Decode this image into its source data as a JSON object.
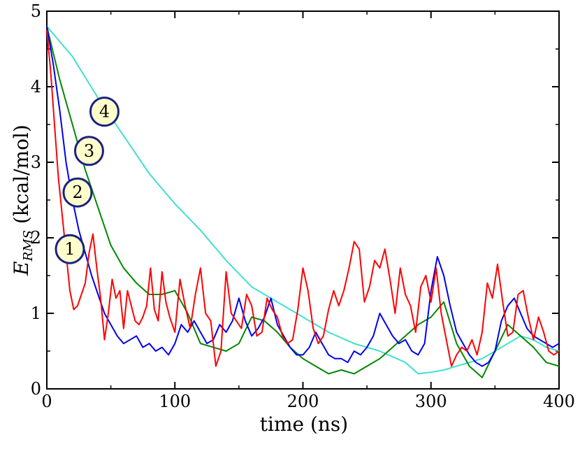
{
  "chart_data": {
    "type": "line",
    "title": "",
    "xlabel": "time (ns)",
    "ylabel_main": "E",
    "ylabel_sub": "RMS",
    "ylabel_units": " (kcal/mol)",
    "xlim": [
      0,
      400
    ],
    "ylim": [
      0,
      5
    ],
    "xticks": [
      0,
      100,
      200,
      300,
      400
    ],
    "yticks": [
      0,
      1,
      2,
      3,
      4,
      5
    ],
    "grid": false,
    "series": [
      {
        "name": "1",
        "color": "#ff0000",
        "x": [
          0,
          3,
          6,
          9,
          12,
          15,
          18,
          21,
          24,
          27,
          30,
          33,
          36,
          39,
          42,
          45,
          48,
          51,
          54,
          57,
          60,
          63,
          66,
          69,
          72,
          75,
          78,
          81,
          84,
          87,
          90,
          93,
          96,
          100,
          104,
          108,
          112,
          116,
          120,
          124,
          128,
          132,
          136,
          140,
          144,
          148,
          152,
          156,
          160,
          164,
          168,
          172,
          176,
          180,
          184,
          188,
          192,
          196,
          200,
          204,
          208,
          212,
          216,
          220,
          224,
          228,
          232,
          236,
          240,
          244,
          248,
          252,
          256,
          260,
          264,
          268,
          272,
          276,
          280,
          284,
          288,
          292,
          296,
          300,
          304,
          308,
          312,
          316,
          320,
          324,
          328,
          332,
          336,
          340,
          344,
          348,
          352,
          356,
          360,
          364,
          368,
          372,
          376,
          380,
          384,
          388,
          392,
          396,
          400
        ],
        "y": [
          4.75,
          4.2,
          3.5,
          2.8,
          2.3,
          1.8,
          1.3,
          1.05,
          1.1,
          1.25,
          1.4,
          1.8,
          2.05,
          1.6,
          1.2,
          0.65,
          1.0,
          1.45,
          1.2,
          1.3,
          0.8,
          1.3,
          1.1,
          0.9,
          0.85,
          0.95,
          1.1,
          1.6,
          1.05,
          0.9,
          1.55,
          1.15,
          0.95,
          0.75,
          1.45,
          1.1,
          0.8,
          1.25,
          1.6,
          1.0,
          0.9,
          0.3,
          0.5,
          1.55,
          1.0,
          0.9,
          0.8,
          1.25,
          1.1,
          0.7,
          0.75,
          1.2,
          1.05,
          0.95,
          0.7,
          0.6,
          0.65,
          1.05,
          1.6,
          1.3,
          0.8,
          0.6,
          0.7,
          1.05,
          1.3,
          1.1,
          1.3,
          1.6,
          1.95,
          1.85,
          1.15,
          1.35,
          1.7,
          1.6,
          1.85,
          1.45,
          1.0,
          1.6,
          1.25,
          1.1,
          0.75,
          1.35,
          1.5,
          1.15,
          1.6,
          1.0,
          0.65,
          0.3,
          0.45,
          0.55,
          0.5,
          0.65,
          0.45,
          0.75,
          1.4,
          1.2,
          1.65,
          1.15,
          0.7,
          0.75,
          1.25,
          1.3,
          0.95,
          0.65,
          0.95,
          0.75,
          0.5,
          0.45,
          0.5
        ]
      },
      {
        "name": "2",
        "color": "#0000ee",
        "x": [
          0,
          5,
          10,
          15,
          20,
          25,
          30,
          35,
          40,
          45,
          50,
          55,
          60,
          65,
          70,
          75,
          80,
          85,
          90,
          95,
          100,
          105,
          110,
          115,
          120,
          125,
          130,
          135,
          140,
          145,
          150,
          155,
          160,
          165,
          170,
          175,
          180,
          185,
          190,
          195,
          200,
          205,
          210,
          215,
          220,
          225,
          230,
          235,
          240,
          245,
          250,
          255,
          260,
          265,
          270,
          275,
          280,
          285,
          290,
          295,
          300,
          305,
          310,
          315,
          320,
          325,
          330,
          335,
          340,
          345,
          350,
          355,
          360,
          365,
          370,
          375,
          380,
          385,
          390,
          395,
          400
        ],
        "y": [
          4.8,
          4.3,
          3.7,
          3.0,
          2.5,
          2.1,
          1.8,
          1.5,
          1.25,
          1.0,
          0.85,
          0.7,
          0.6,
          0.65,
          0.7,
          0.55,
          0.6,
          0.5,
          0.55,
          0.45,
          0.6,
          0.85,
          0.75,
          0.9,
          0.75,
          0.6,
          0.65,
          0.85,
          0.75,
          0.9,
          1.2,
          0.9,
          0.7,
          0.8,
          0.95,
          1.2,
          0.85,
          0.7,
          0.55,
          0.45,
          0.45,
          0.55,
          0.75,
          0.6,
          0.45,
          0.4,
          0.4,
          0.35,
          0.5,
          0.45,
          0.55,
          0.7,
          1.0,
          0.85,
          0.7,
          0.6,
          0.65,
          0.5,
          0.45,
          0.6,
          1.3,
          1.75,
          1.5,
          1.1,
          0.75,
          0.6,
          0.45,
          0.35,
          0.3,
          0.35,
          0.5,
          0.9,
          1.1,
          1.2,
          1.0,
          0.8,
          0.7,
          0.65,
          0.6,
          0.55,
          0.6
        ]
      },
      {
        "name": "3",
        "color": "#008800",
        "x": [
          0,
          10,
          20,
          30,
          40,
          50,
          60,
          70,
          80,
          90,
          100,
          110,
          120,
          130,
          140,
          150,
          160,
          170,
          180,
          190,
          200,
          210,
          220,
          230,
          240,
          250,
          260,
          270,
          280,
          290,
          300,
          310,
          320,
          330,
          340,
          350,
          360,
          370,
          380,
          390,
          400
        ],
        "y": [
          4.8,
          4.1,
          3.5,
          2.9,
          2.4,
          1.9,
          1.6,
          1.4,
          1.25,
          1.25,
          1.3,
          1.0,
          0.6,
          0.55,
          0.5,
          0.6,
          0.95,
          0.9,
          0.75,
          0.55,
          0.4,
          0.3,
          0.2,
          0.25,
          0.2,
          0.3,
          0.4,
          0.55,
          0.7,
          0.85,
          0.95,
          1.15,
          0.6,
          0.3,
          0.15,
          0.5,
          0.85,
          0.7,
          0.55,
          0.35,
          0.3
        ]
      },
      {
        "name": "4",
        "color": "#40e0d0",
        "x": [
          0,
          20,
          40,
          60,
          80,
          100,
          120,
          140,
          160,
          180,
          200,
          220,
          240,
          260,
          280,
          290,
          300,
          310,
          320,
          330,
          340,
          350,
          360,
          370,
          380,
          390,
          400
        ],
        "y": [
          4.8,
          4.4,
          3.85,
          3.35,
          2.85,
          2.45,
          2.1,
          1.7,
          1.35,
          1.15,
          0.95,
          0.75,
          0.6,
          0.5,
          0.35,
          0.2,
          0.22,
          0.25,
          0.3,
          0.35,
          0.4,
          0.5,
          0.6,
          0.7,
          0.65,
          0.55,
          0.5
        ]
      }
    ],
    "annotations": [
      {
        "label": "1",
        "x": 18,
        "y": 1.85
      },
      {
        "label": "2",
        "x": 24,
        "y": 2.6
      },
      {
        "label": "3",
        "x": 33,
        "y": 3.15
      },
      {
        "label": "4",
        "x": 45,
        "y": 3.67
      }
    ],
    "marker_fill": "#ffffcc",
    "marker_stroke": "#1a237e"
  }
}
